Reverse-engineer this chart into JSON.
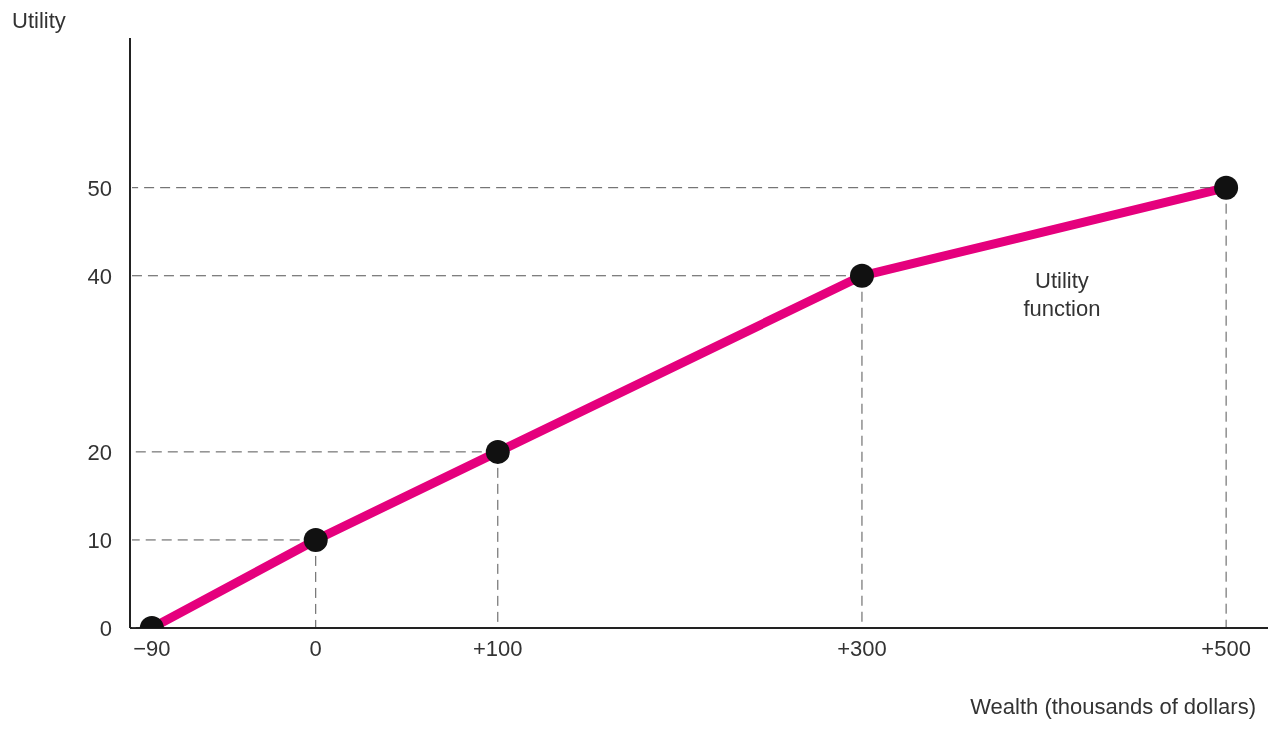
{
  "chart_data": {
    "type": "line",
    "xlabel": "Wealth (thousands of dollars)",
    "ylabel": "Utility",
    "x": [
      -90,
      0,
      100,
      300,
      500
    ],
    "series": [
      {
        "name": "Utility function",
        "color": "#e5007d",
        "values": [
          0,
          10,
          20,
          40,
          50
        ]
      }
    ],
    "xlim": [
      -102,
      523
    ],
    "xticks": [
      {
        "value": -90,
        "label": "−90"
      },
      0,
      {
        "value": 100,
        "label": "+100"
      },
      {
        "value": 300,
        "label": "+300"
      },
      {
        "value": 500,
        "label": "+500"
      }
    ],
    "ylim": [
      0,
      67
    ],
    "yticks": [
      0,
      10,
      20,
      40,
      50
    ],
    "marker": "circle",
    "line_style": "solid"
  }
}
